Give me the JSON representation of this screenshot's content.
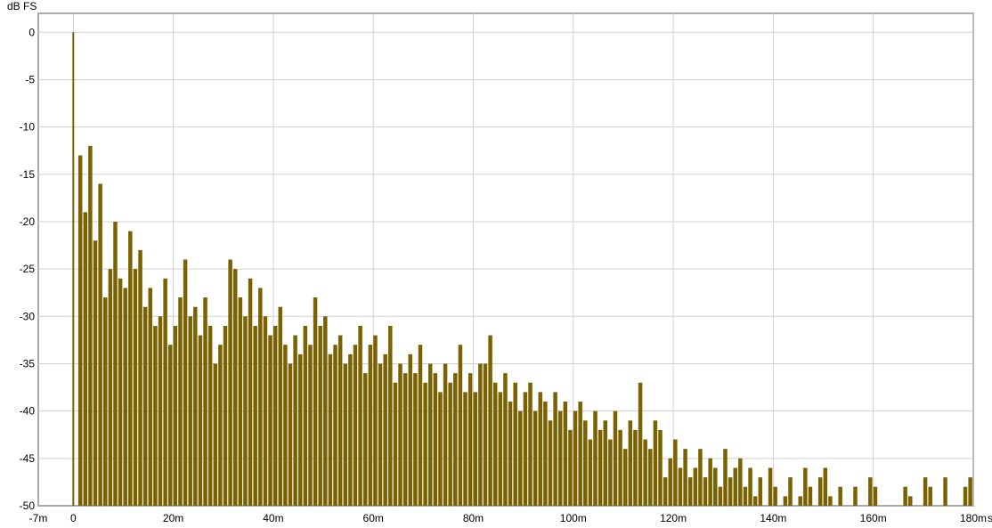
{
  "chart_data": {
    "type": "bar",
    "title": "",
    "ylabel": "dB FS",
    "xunit": "s",
    "xlim_ms": [
      -7,
      180
    ],
    "ylim": [
      -50,
      2
    ],
    "grid": true,
    "xticks": [
      {
        "v": -7,
        "label": "-7m"
      },
      {
        "v": 0,
        "label": "0"
      },
      {
        "v": 20,
        "label": "20m"
      },
      {
        "v": 40,
        "label": "40m"
      },
      {
        "v": 60,
        "label": "60m"
      },
      {
        "v": 80,
        "label": "80m"
      },
      {
        "v": 100,
        "label": "100m"
      },
      {
        "v": 120,
        "label": "120m"
      },
      {
        "v": 140,
        "label": "140m"
      },
      {
        "v": 160,
        "label": "160m"
      },
      {
        "v": 180,
        "label": "180m"
      }
    ],
    "yticks": [
      0,
      -5,
      -10,
      -15,
      -20,
      -25,
      -30,
      -35,
      -40,
      -45,
      -50
    ],
    "series_color": "#7a6200",
    "x_ms": [
      0,
      1,
      2,
      3,
      4,
      5,
      6,
      7,
      8,
      9,
      10,
      11,
      12,
      13,
      14,
      15,
      16,
      17,
      18,
      19,
      20,
      21,
      22,
      23,
      24,
      25,
      26,
      27,
      28,
      29,
      30,
      31,
      32,
      33,
      34,
      35,
      36,
      37,
      38,
      39,
      40,
      41,
      42,
      43,
      44,
      45,
      46,
      47,
      48,
      49,
      50,
      51,
      52,
      53,
      54,
      55,
      56,
      57,
      58,
      59,
      60,
      61,
      62,
      63,
      64,
      65,
      66,
      67,
      68,
      69,
      70,
      71,
      72,
      73,
      74,
      75,
      76,
      77,
      78,
      79,
      80,
      81,
      82,
      83,
      84,
      85,
      86,
      87,
      88,
      89,
      90,
      91,
      92,
      93,
      94,
      95,
      96,
      97,
      98,
      99,
      100,
      101,
      102,
      103,
      104,
      105,
      106,
      107,
      108,
      109,
      110,
      111,
      112,
      113,
      114,
      115,
      116,
      117,
      118,
      119,
      120,
      121,
      122,
      123,
      124,
      125,
      126,
      127,
      128,
      129,
      130,
      131,
      132,
      133,
      134,
      135,
      136,
      137,
      138,
      139,
      140,
      141,
      142,
      143,
      144,
      145,
      146,
      147,
      148,
      149,
      150,
      151,
      152,
      153,
      154,
      155,
      156,
      157,
      158,
      159,
      160,
      161,
      162,
      163,
      164,
      165,
      166,
      167,
      168,
      169,
      170,
      171,
      172,
      173,
      174,
      175,
      176,
      177,
      178,
      179,
      180
    ],
    "peak_db": [
      0,
      -13,
      -19,
      -12,
      -22,
      -16,
      -28,
      -25,
      -20,
      -26,
      -27,
      -21,
      -25,
      -23,
      -29,
      -27,
      -31,
      -30,
      -26,
      -33,
      -31,
      -28,
      -24,
      -30,
      -29,
      -32,
      -28,
      -31,
      -35,
      -33,
      -31,
      -24,
      -25,
      -28,
      -30,
      -26,
      -31,
      -27,
      -30,
      -32,
      -31,
      -29,
      -33,
      -35,
      -32,
      -34,
      -31,
      -33,
      -28,
      -31,
      -30,
      -34,
      -33,
      -32,
      -35,
      -34,
      -33,
      -31,
      -36,
      -33,
      -32,
      -35,
      -34,
      -31,
      -37,
      -35,
      -36,
      -34,
      -36,
      -33,
      -37,
      -35,
      -36,
      -38,
      -35,
      -37,
      -36,
      -33,
      -38,
      -36,
      -38,
      -35,
      -35,
      -32,
      -37,
      -38,
      -36,
      -39,
      -37,
      -40,
      -38,
      -37,
      -40,
      -38,
      -39,
      -41,
      -38,
      -40,
      -39,
      -42,
      -40,
      -39,
      -41,
      -43,
      -40,
      -42,
      -41,
      -43,
      -40,
      -42,
      -44,
      -41,
      -42,
      -37,
      -43,
      -44,
      -41,
      -42,
      -47,
      -45,
      -43,
      -46,
      -44,
      -47,
      -46,
      -44,
      -47,
      -45,
      -46,
      -48,
      -44,
      -47,
      -46,
      -45,
      -48,
      -46,
      -49,
      -47,
      -50,
      -46,
      -48,
      -50,
      -49,
      -47,
      -50,
      -49,
      -46,
      -48,
      -50,
      -47,
      -46,
      -49,
      -50,
      -48,
      -50,
      -50,
      -48,
      -50,
      -50,
      -47,
      -48,
      -50,
      -50,
      -50,
      -50,
      -50,
      -48,
      -49,
      -50,
      -50,
      -47,
      -48,
      -50,
      -50,
      -47,
      -50,
      -50,
      -50,
      -48,
      -47,
      -50
    ]
  }
}
